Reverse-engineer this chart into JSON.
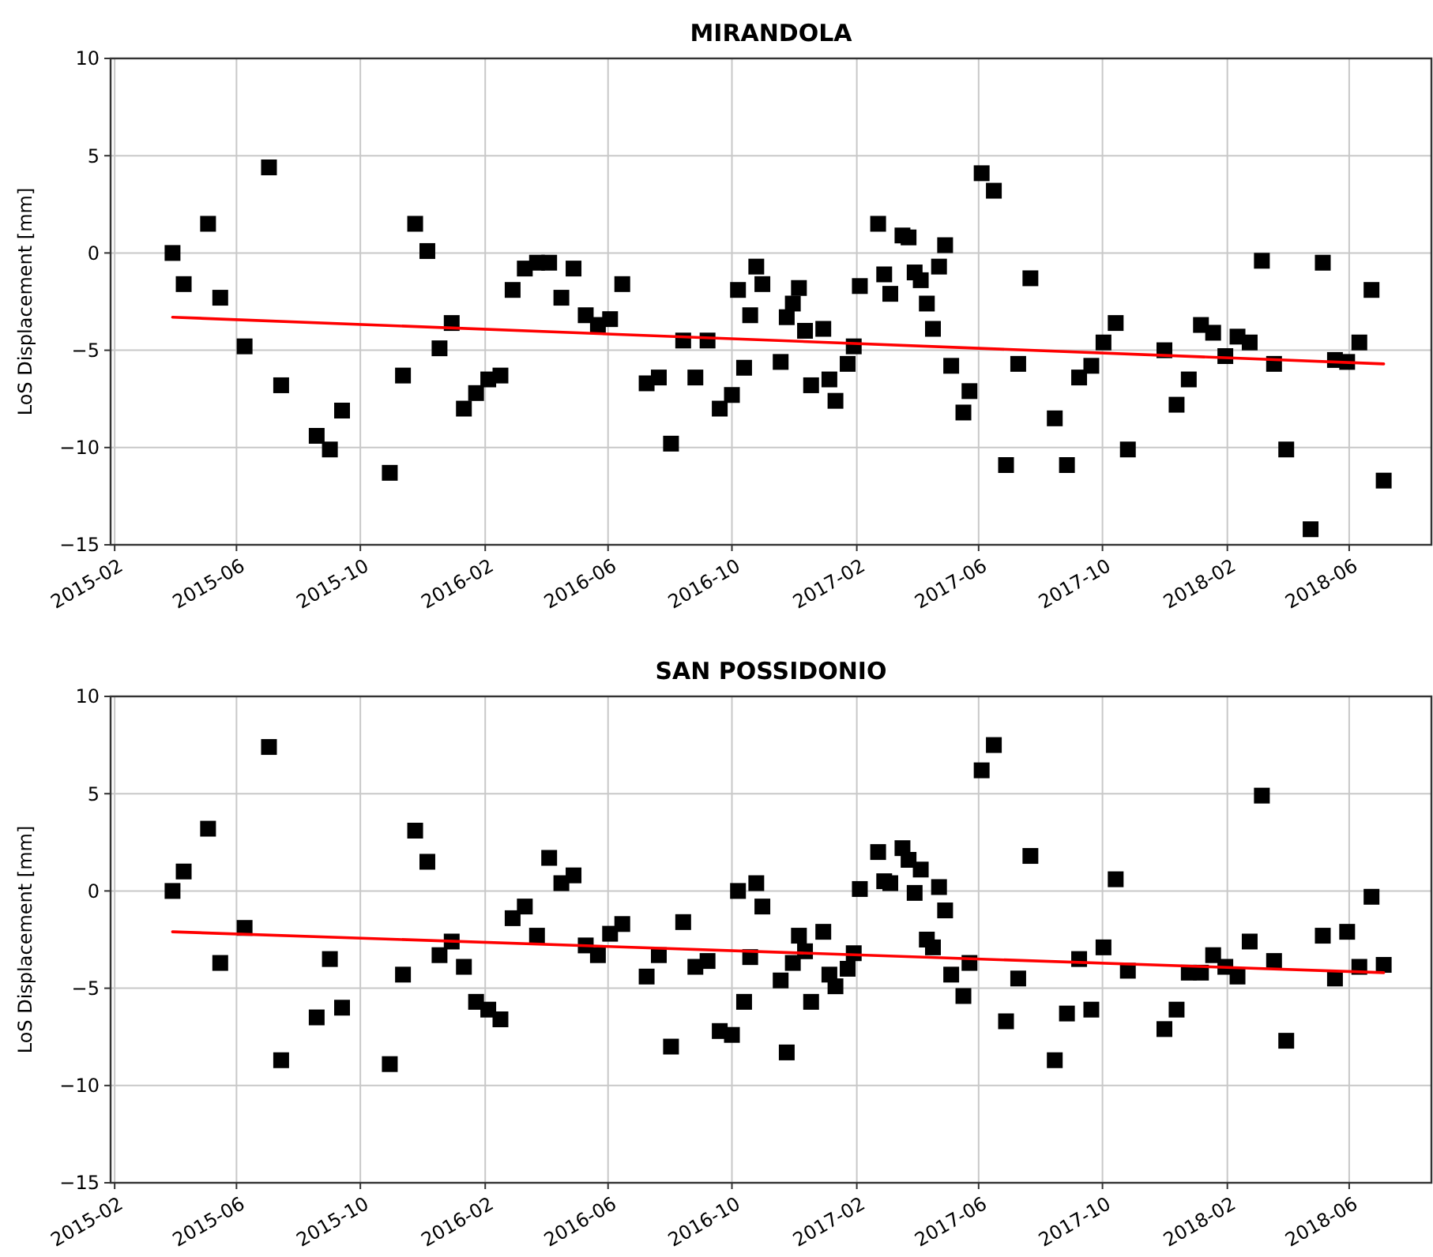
{
  "chart_data": [
    {
      "type": "scatter",
      "title": "MIRANDOLA",
      "ylabel": "LoS Displacement [mm]",
      "xlim": [
        "2015-01-28",
        "2018-08-21"
      ],
      "xticks": [
        "2015-02",
        "2015-06",
        "2015-10",
        "2016-02",
        "2016-06",
        "2016-10",
        "2017-02",
        "2017-06",
        "2017-10",
        "2018-02",
        "2018-06"
      ],
      "ylim": [
        -15,
        10
      ],
      "yticks": [
        -15,
        -10,
        -5,
        0,
        5,
        10
      ],
      "grid": true,
      "series": [
        {
          "marker": "square",
          "color": "#000000",
          "x": [
            "2015-03-30",
            "2015-04-10",
            "2015-05-04",
            "2015-05-16",
            "2015-06-09",
            "2015-07-03",
            "2015-07-15",
            "2015-08-19",
            "2015-09-01",
            "2015-09-13",
            "2015-10-30",
            "2015-11-12",
            "2015-11-24",
            "2015-12-06",
            "2015-12-18",
            "2015-12-30",
            "2016-01-11",
            "2016-01-23",
            "2016-02-04",
            "2016-02-16",
            "2016-02-28",
            "2016-03-11",
            "2016-03-23",
            "2016-04-04",
            "2016-04-16",
            "2016-04-28",
            "2016-05-10",
            "2016-05-22",
            "2016-06-03",
            "2016-06-15",
            "2016-07-09",
            "2016-07-21",
            "2016-08-02",
            "2016-08-14",
            "2016-08-26",
            "2016-09-07",
            "2016-09-19",
            "2016-10-01",
            "2016-10-07",
            "2016-10-13",
            "2016-10-19",
            "2016-10-25",
            "2016-10-31",
            "2016-11-18",
            "2016-11-24",
            "2016-11-30",
            "2016-12-06",
            "2016-12-12",
            "2016-12-18",
            "2016-12-30",
            "2017-01-05",
            "2017-01-11",
            "2017-01-23",
            "2017-01-29",
            "2017-02-04",
            "2017-02-22",
            "2017-02-28",
            "2017-03-06",
            "2017-03-18",
            "2017-03-24",
            "2017-03-30",
            "2017-04-05",
            "2017-04-11",
            "2017-04-17",
            "2017-04-23",
            "2017-04-29",
            "2017-05-05",
            "2017-05-17",
            "2017-05-23",
            "2017-06-04",
            "2017-06-16",
            "2017-06-28",
            "2017-07-10",
            "2017-07-22",
            "2017-08-15",
            "2017-08-27",
            "2017-09-08",
            "2017-09-20",
            "2017-10-02",
            "2017-10-14",
            "2017-10-26",
            "2017-12-01",
            "2017-12-13",
            "2017-12-25",
            "2018-01-06",
            "2018-01-18",
            "2018-01-30",
            "2018-02-11",
            "2018-02-23",
            "2018-03-07",
            "2018-03-19",
            "2018-03-31",
            "2018-04-24",
            "2018-05-06",
            "2018-05-18",
            "2018-05-30",
            "2018-06-11",
            "2018-06-23",
            "2018-07-05"
          ],
          "values": [
            0.0,
            -1.6,
            1.5,
            -2.3,
            -4.8,
            4.4,
            -6.8,
            -9.4,
            -10.1,
            -8.1,
            -11.3,
            -6.3,
            1.5,
            0.1,
            -4.9,
            -3.6,
            -8.0,
            -7.2,
            -6.5,
            -6.3,
            -1.9,
            -0.8,
            -0.5,
            -0.5,
            -2.3,
            -0.8,
            -3.2,
            -3.7,
            -3.4,
            -1.6,
            -6.7,
            -6.4,
            -9.8,
            -4.5,
            -6.4,
            -4.5,
            -8.0,
            -7.3,
            -1.9,
            -5.9,
            -3.2,
            -0.7,
            -1.6,
            -5.6,
            -3.3,
            -2.6,
            -1.8,
            -4.0,
            -6.8,
            -3.9,
            -6.5,
            -7.6,
            -5.7,
            -4.8,
            -1.7,
            1.5,
            -1.1,
            -2.1,
            0.9,
            0.8,
            -1.0,
            -1.4,
            -2.6,
            -3.9,
            -0.7,
            0.4,
            -5.8,
            -8.2,
            -7.1,
            4.1,
            3.2,
            -10.9,
            -5.7,
            -1.3,
            -8.5,
            -10.9,
            -6.4,
            -5.8,
            -4.6,
            -3.6,
            -10.1,
            -5.0,
            -7.8,
            -6.5,
            -3.7,
            -4.1,
            -5.3,
            -4.3,
            -4.6,
            -0.4,
            -5.7,
            -10.1,
            -14.2,
            -0.5,
            -5.5,
            -5.6,
            -4.6,
            -1.9,
            -11.7
          ]
        },
        {
          "type": "line",
          "color": "#ff0000",
          "x": [
            "2015-03-30",
            "2018-07-05"
          ],
          "values": [
            -3.3,
            -5.7
          ]
        }
      ]
    },
    {
      "type": "scatter",
      "title": "SAN POSSIDONIO",
      "ylabel": "LoS Displacement [mm]",
      "xlim": [
        "2015-01-28",
        "2018-08-21"
      ],
      "xticks": [
        "2015-02",
        "2015-06",
        "2015-10",
        "2016-02",
        "2016-06",
        "2016-10",
        "2017-02",
        "2017-06",
        "2017-10",
        "2018-02",
        "2018-06"
      ],
      "ylim": [
        -15,
        10
      ],
      "yticks": [
        -15,
        -10,
        -5,
        0,
        5,
        10
      ],
      "grid": true,
      "series": [
        {
          "marker": "square",
          "color": "#000000",
          "x": [
            "2015-03-30",
            "2015-04-10",
            "2015-05-04",
            "2015-05-16",
            "2015-06-09",
            "2015-07-03",
            "2015-07-15",
            "2015-08-19",
            "2015-09-01",
            "2015-09-13",
            "2015-10-30",
            "2015-11-12",
            "2015-11-24",
            "2015-12-06",
            "2015-12-18",
            "2015-12-30",
            "2016-01-11",
            "2016-01-23",
            "2016-02-04",
            "2016-02-16",
            "2016-02-28",
            "2016-03-11",
            "2016-03-23",
            "2016-04-04",
            "2016-04-16",
            "2016-04-28",
            "2016-05-10",
            "2016-05-22",
            "2016-06-03",
            "2016-06-15",
            "2016-07-09",
            "2016-07-21",
            "2016-08-02",
            "2016-08-14",
            "2016-08-26",
            "2016-09-07",
            "2016-09-19",
            "2016-10-01",
            "2016-10-07",
            "2016-10-13",
            "2016-10-19",
            "2016-10-25",
            "2016-10-31",
            "2016-11-18",
            "2016-11-24",
            "2016-11-30",
            "2016-12-06",
            "2016-12-12",
            "2016-12-18",
            "2016-12-30",
            "2017-01-05",
            "2017-01-11",
            "2017-01-23",
            "2017-01-29",
            "2017-02-04",
            "2017-02-22",
            "2017-02-28",
            "2017-03-06",
            "2017-03-18",
            "2017-03-24",
            "2017-03-30",
            "2017-04-05",
            "2017-04-11",
            "2017-04-17",
            "2017-04-23",
            "2017-04-29",
            "2017-05-05",
            "2017-05-17",
            "2017-05-23",
            "2017-06-04",
            "2017-06-16",
            "2017-06-28",
            "2017-07-10",
            "2017-07-22",
            "2017-08-15",
            "2017-08-27",
            "2017-09-08",
            "2017-09-20",
            "2017-10-02",
            "2017-10-14",
            "2017-10-26",
            "2017-12-01",
            "2017-12-13",
            "2017-12-25",
            "2018-01-06",
            "2018-01-18",
            "2018-01-30",
            "2018-02-11",
            "2018-02-23",
            "2018-03-07",
            "2018-03-19",
            "2018-03-31",
            "2018-05-06",
            "2018-05-18",
            "2018-05-30",
            "2018-06-11",
            "2018-06-23",
            "2018-07-05"
          ],
          "values": [
            0.0,
            1.0,
            3.2,
            -3.7,
            -1.9,
            7.4,
            -8.7,
            -6.5,
            -3.5,
            -6.0,
            -8.9,
            -4.3,
            3.1,
            1.5,
            -3.3,
            -2.6,
            -3.9,
            -5.7,
            -6.1,
            -6.6,
            -1.4,
            -0.8,
            -2.3,
            1.7,
            0.4,
            0.8,
            -2.8,
            -3.3,
            -2.2,
            -1.7,
            -4.4,
            -3.3,
            -8.0,
            -1.6,
            -3.9,
            -3.6,
            -7.2,
            -7.4,
            0.0,
            -5.7,
            -3.4,
            0.4,
            -0.8,
            -4.6,
            -8.3,
            -3.7,
            -2.3,
            -3.1,
            -5.7,
            -2.1,
            -4.3,
            -4.9,
            -4.0,
            -3.2,
            0.1,
            2.0,
            0.5,
            0.4,
            2.2,
            1.6,
            -0.1,
            1.1,
            -2.5,
            -2.9,
            0.2,
            -1.0,
            -4.3,
            -5.4,
            -3.7,
            6.2,
            7.5,
            -6.7,
            -4.5,
            1.8,
            -8.7,
            -6.3,
            -3.5,
            -6.1,
            -2.9,
            0.6,
            -4.1,
            -7.1,
            -6.1,
            -4.2,
            -4.2,
            -3.3,
            -3.9,
            -4.4,
            -2.6,
            4.9,
            -3.6,
            -7.7,
            -2.3,
            -4.5,
            -2.1,
            -3.9,
            -0.3,
            -3.8
          ]
        },
        {
          "type": "line",
          "color": "#ff0000",
          "x": [
            "2015-03-30",
            "2018-07-05"
          ],
          "values": [
            -2.1,
            -4.2
          ]
        }
      ]
    }
  ]
}
